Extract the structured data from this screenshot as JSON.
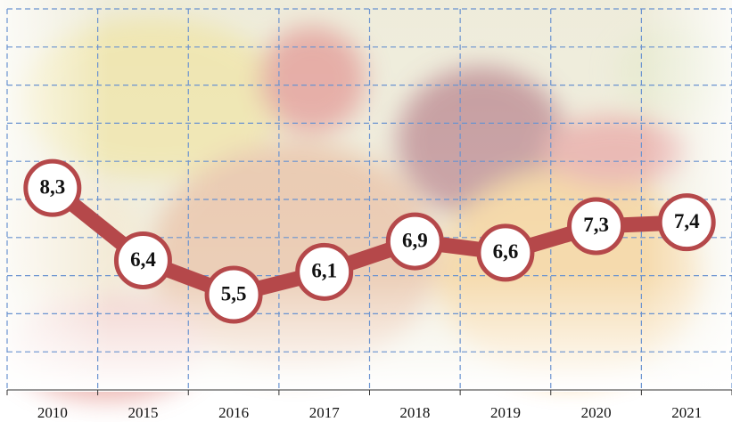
{
  "chart_data": {
    "type": "line",
    "categories": [
      "2010",
      "2015",
      "2016",
      "2017",
      "2018",
      "2019",
      "2020",
      "2021"
    ],
    "values": [
      8.3,
      6.4,
      5.5,
      6.1,
      6.9,
      6.6,
      7.3,
      7.4
    ],
    "value_labels": [
      "8,3",
      "6,4",
      "5,5",
      "6,1",
      "6,9",
      "6,6",
      "7,3",
      "7,4"
    ],
    "color": "#b5484a",
    "ylim": [
      3,
      13
    ],
    "yticks": [
      4,
      5,
      6,
      7,
      8,
      9,
      10,
      11,
      12,
      13
    ],
    "grid": true
  }
}
